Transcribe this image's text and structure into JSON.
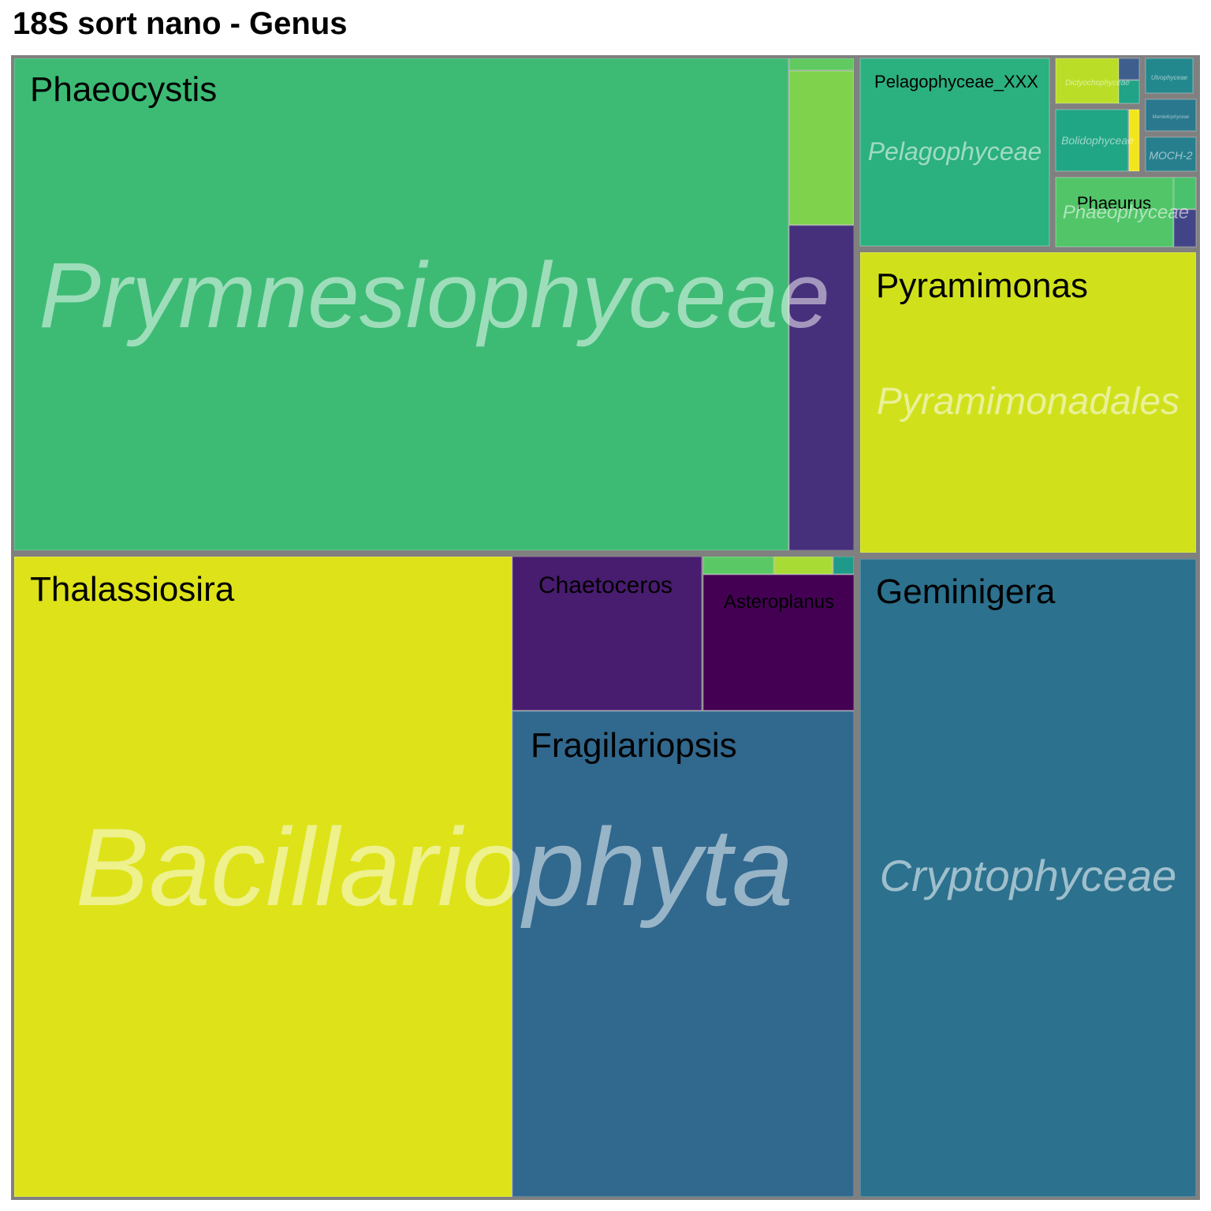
{
  "title": "18S sort nano - Genus",
  "chart_data": {
    "type": "treemap",
    "title": "18S sort nano - Genus",
    "groups": [
      {
        "name": "Prymnesiophyceae",
        "genera": [
          {
            "name": "Phaeocystis",
            "value": 42.0,
            "color": "#3dbb74"
          },
          {
            "name": "",
            "value": 0.1,
            "color": "#60c960"
          },
          {
            "name": "",
            "value": 1.2,
            "color": "#7fd24c"
          },
          {
            "name": "",
            "value": 2.9,
            "color": "#462f7b"
          }
        ]
      },
      {
        "name": "Bacillariophyta",
        "genera": [
          {
            "name": "Thalassiosira",
            "value": 26.0,
            "color": "#dde318"
          },
          {
            "name": "Chaetoceros",
            "value": 4.0,
            "color": "#481c6e"
          },
          {
            "name": "Asteroplanus",
            "value": 3.1,
            "color": "#440154"
          },
          {
            "name": "",
            "value": 0.3,
            "color": "#5ac864"
          },
          {
            "name": "",
            "value": 0.25,
            "color": "#a8db34"
          },
          {
            "name": "",
            "value": 0.08,
            "color": "#1f9a8a"
          },
          {
            "name": "Fragilariopsis",
            "value": 13.1,
            "color": "#31688e"
          }
        ]
      },
      {
        "name": "Pelagophyceae",
        "genera": [
          {
            "name": "Pelagophyceae_XXX",
            "value": 2.9,
            "color": "#2bb07f"
          }
        ]
      },
      {
        "name": "Dictyochophyceae",
        "genera": [
          {
            "name": "",
            "value": 0.5,
            "color": "#bade28"
          },
          {
            "name": "",
            "value": 0.15,
            "color": "#3e5f8e"
          },
          {
            "name": "",
            "value": 0.2,
            "color": "#20a386"
          }
        ]
      },
      {
        "name": "Ulvophyceae",
        "genera": [
          {
            "name": "",
            "value": 0.2,
            "color": "#23888e"
          }
        ]
      },
      {
        "name": "Mamiellophyceae",
        "genera": [
          {
            "name": "",
            "value": 0.12,
            "color": "#2a788e"
          }
        ]
      },
      {
        "name": "Bolidophyceae",
        "genera": [
          {
            "name": "",
            "value": 0.6,
            "color": "#21a685"
          },
          {
            "name": "",
            "value": 0.1,
            "color": "#f2e51d"
          }
        ]
      },
      {
        "name": "MOCH-2",
        "genera": [
          {
            "name": "",
            "value": 0.15,
            "color": "#277f8e"
          }
        ]
      },
      {
        "name": "Phaeophyceae",
        "genera": [
          {
            "name": "Phaeurus",
            "value": 1.1,
            "color": "#52c569"
          },
          {
            "name": "",
            "value": 0.07,
            "color": "#4ac16d"
          },
          {
            "name": "",
            "value": 0.08,
            "color": "#414487"
          }
        ]
      },
      {
        "name": "Pyramimonadales",
        "genera": [
          {
            "name": "Pyramimonas",
            "value": 11.7,
            "color": "#d0e11c"
          }
        ]
      },
      {
        "name": "Cryptophyceae",
        "genera": [
          {
            "name": "Geminigera",
            "value": 18.5,
            "color": "#2c718e"
          }
        ]
      }
    ]
  }
}
